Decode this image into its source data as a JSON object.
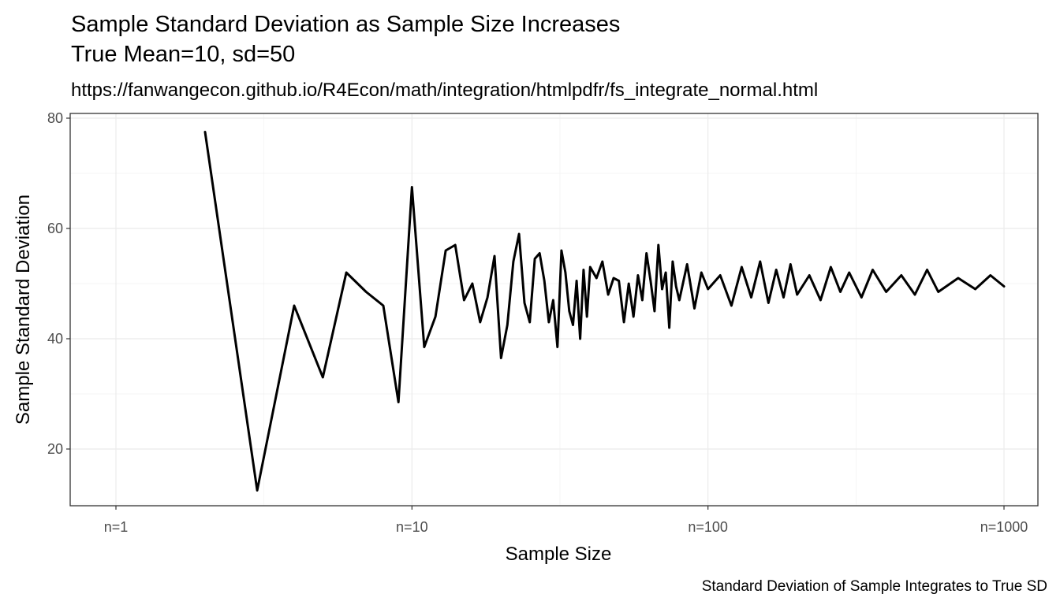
{
  "chart_data": {
    "type": "line",
    "title_line1": "Sample Standard Deviation as Sample Size Increases",
    "title_line2": "True Mean=10, sd=50",
    "subtitle": "https://fanwangecon.github.io/R4Econ/math/integration/htmlpdfr/fs_integrate_normal.html",
    "xlabel": "Sample Size",
    "ylabel": "Sample Standard Deviation",
    "caption": "Standard Deviation of Sample Integrates to True SD",
    "x_scale": "log10",
    "xlim": [
      1,
      1000
    ],
    "ylim": [
      10,
      80
    ],
    "x_ticks": [
      {
        "value": 1,
        "label": "n=1"
      },
      {
        "value": 10,
        "label": "n=10"
      },
      {
        "value": 100,
        "label": "n=100"
      },
      {
        "value": 1000,
        "label": "n=1000"
      }
    ],
    "y_ticks": [
      {
        "value": 20,
        "label": "20"
      },
      {
        "value": 40,
        "label": "40"
      },
      {
        "value": 60,
        "label": "60"
      },
      {
        "value": 80,
        "label": "80"
      }
    ],
    "grid": true,
    "line_color": "#000000",
    "series": [
      {
        "x": [
          2,
          3,
          4,
          5,
          6,
          7,
          8,
          9,
          10,
          11,
          12,
          13,
          14,
          15,
          16,
          17,
          18,
          19,
          20,
          21,
          22,
          23,
          24,
          25,
          26,
          27,
          28,
          29,
          30,
          31,
          32,
          33,
          34,
          35,
          36,
          37,
          38,
          39,
          40,
          41,
          42,
          44,
          46,
          48,
          50,
          52,
          54,
          56,
          58,
          60,
          62,
          64,
          66,
          68,
          70,
          72,
          74,
          76,
          78,
          80,
          85,
          90,
          95,
          100,
          110,
          120,
          130,
          140,
          150,
          160,
          170,
          180,
          190,
          200,
          220,
          240,
          260,
          280,
          300,
          330,
          360,
          400,
          450,
          500,
          550,
          600,
          700,
          800,
          900,
          1000
        ],
        "y": [
          77.5,
          12.5,
          46.0,
          33.0,
          52.0,
          48.5,
          46.0,
          28.5,
          67.5,
          38.5,
          44.0,
          56.0,
          57.0,
          47.0,
          50.0,
          43.0,
          47.5,
          55.0,
          36.5,
          42.5,
          54.0,
          59.0,
          46.5,
          43.0,
          54.5,
          55.5,
          50.5,
          43.0,
          47.0,
          38.5,
          56.0,
          52.0,
          45.0,
          42.5,
          50.5,
          40.0,
          52.5,
          44.0,
          53.0,
          52.0,
          51.0,
          54.0,
          48.0,
          51.0,
          50.5,
          43.0,
          50.0,
          44.0,
          51.5,
          47.0,
          55.5,
          50.5,
          45.0,
          57.0,
          49.0,
          52.0,
          42.0,
          54.0,
          49.5,
          47.0,
          53.5,
          45.5,
          52.0,
          49.0,
          51.5,
          46.0,
          53.0,
          47.5,
          54.0,
          46.5,
          52.5,
          47.5,
          53.5,
          48.0,
          51.5,
          47.0,
          53.0,
          48.5,
          52.0,
          47.5,
          52.5,
          48.5,
          51.5,
          48.0,
          52.5,
          48.5,
          51.0,
          49.0,
          51.5,
          49.5
        ]
      }
    ]
  }
}
